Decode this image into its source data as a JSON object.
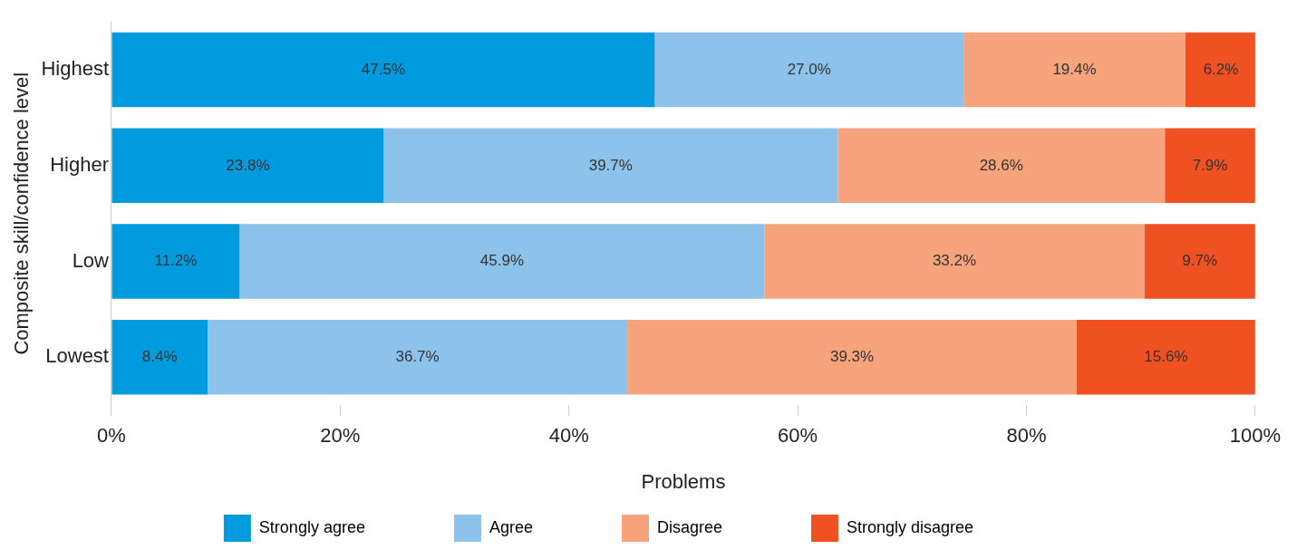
{
  "chart_data": {
    "type": "bar",
    "orientation": "horizontal",
    "stacked": true,
    "xlabel": "Problems",
    "ylabel": "Composite skill/confidence level",
    "categories": [
      "Highest",
      "Higher",
      "Low",
      "Lowest"
    ],
    "series": [
      {
        "name": "Strongly agree",
        "color": "#009ade",
        "values": [
          47.5,
          23.8,
          11.2,
          8.4
        ],
        "value_labels": [
          "47.5%",
          "23.8%",
          "11.2%",
          "8.4%"
        ]
      },
      {
        "name": "Agree",
        "color": "#8dc3ea",
        "values": [
          27.0,
          39.7,
          45.9,
          36.7
        ],
        "value_labels": [
          "27.0%",
          "39.7%",
          "45.9%",
          "36.7%"
        ]
      },
      {
        "name": "Disagree",
        "color": "#f7a47d",
        "values": [
          19.4,
          28.6,
          33.2,
          39.3
        ],
        "value_labels": [
          "19.4%",
          "28.6%",
          "33.2%",
          "39.3%"
        ]
      },
      {
        "name": "Strongly disagree",
        "color": "#ef5123",
        "values": [
          6.2,
          7.9,
          9.7,
          15.6
        ],
        "value_labels": [
          "6.2%",
          "7.9%",
          "9.7%",
          "15.6%"
        ]
      }
    ],
    "xlim": [
      0,
      100
    ],
    "xticks": [
      {
        "value": 0,
        "label": "0%"
      },
      {
        "value": 20,
        "label": "20%"
      },
      {
        "value": 40,
        "label": "40%"
      },
      {
        "value": 60,
        "label": "60%"
      },
      {
        "value": 80,
        "label": "80%"
      },
      {
        "value": 100,
        "label": "100%"
      }
    ],
    "grid": false,
    "legend": "bottom"
  }
}
